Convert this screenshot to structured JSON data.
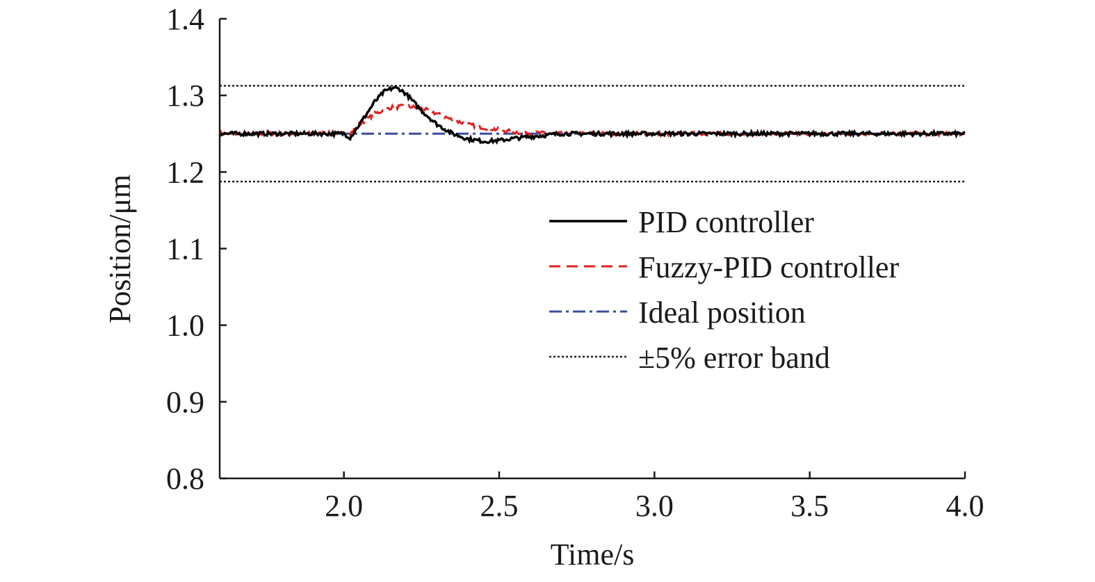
{
  "chart_data": {
    "type": "line",
    "title": "",
    "xlabel": "Time/s",
    "ylabel": "Position/μm",
    "xlim": [
      1.6,
      4.0
    ],
    "ylim": [
      0.8,
      1.4
    ],
    "xticks": [
      2.0,
      2.5,
      3.0,
      3.5,
      4.0
    ],
    "xtick_labels": [
      "2.0",
      "2.5",
      "3.0",
      "3.5",
      "4.0"
    ],
    "yticks": [
      0.8,
      0.9,
      1.0,
      1.1,
      1.2,
      1.3,
      1.4
    ],
    "ytick_labels": [
      "0.8",
      "0.9",
      "1.0",
      "1.1",
      "1.2",
      "1.3",
      "1.4"
    ],
    "grid": false,
    "legend_position": "right",
    "series": [
      {
        "name": "PID controller",
        "color": "#000000",
        "style": "solid",
        "x": [
          1.6,
          1.9,
          2.0,
          2.02,
          2.05,
          2.1,
          2.13,
          2.16,
          2.18,
          2.2,
          2.25,
          2.3,
          2.35,
          2.4,
          2.45,
          2.5,
          2.55,
          2.6,
          2.65,
          2.7,
          2.8,
          3.0,
          3.5,
          4.0
        ],
        "y": [
          1.25,
          1.25,
          1.25,
          1.245,
          1.262,
          1.292,
          1.305,
          1.31,
          1.308,
          1.302,
          1.28,
          1.262,
          1.25,
          1.243,
          1.24,
          1.241,
          1.244,
          1.246,
          1.248,
          1.25,
          1.25,
          1.25,
          1.25,
          1.25
        ]
      },
      {
        "name": "Fuzzy-PID controller",
        "color": "#e02020",
        "style": "dashed",
        "x": [
          1.6,
          1.9,
          2.0,
          2.02,
          2.05,
          2.1,
          2.15,
          2.2,
          2.25,
          2.3,
          2.35,
          2.4,
          2.45,
          2.5,
          2.55,
          2.6,
          2.7,
          3.0,
          3.5,
          4.0
        ],
        "y": [
          1.25,
          1.25,
          1.25,
          1.25,
          1.262,
          1.276,
          1.284,
          1.286,
          1.283,
          1.276,
          1.268,
          1.262,
          1.258,
          1.255,
          1.252,
          1.251,
          1.25,
          1.25,
          1.25,
          1.25
        ]
      },
      {
        "name": "Ideal position",
        "color": "#3a4ea0",
        "style": "dashdot",
        "x": [
          1.6,
          4.0
        ],
        "y": [
          1.25,
          1.25
        ]
      },
      {
        "name": "±5% error band",
        "color": "#222222",
        "style": "dotted",
        "x": [
          1.6,
          4.0
        ],
        "y": [
          1.3125,
          1.3125
        ]
      },
      {
        "name": "",
        "color": "#222222",
        "style": "dotted",
        "x": [
          1.6,
          4.0
        ],
        "y": [
          1.1875,
          1.1875
        ]
      }
    ]
  }
}
